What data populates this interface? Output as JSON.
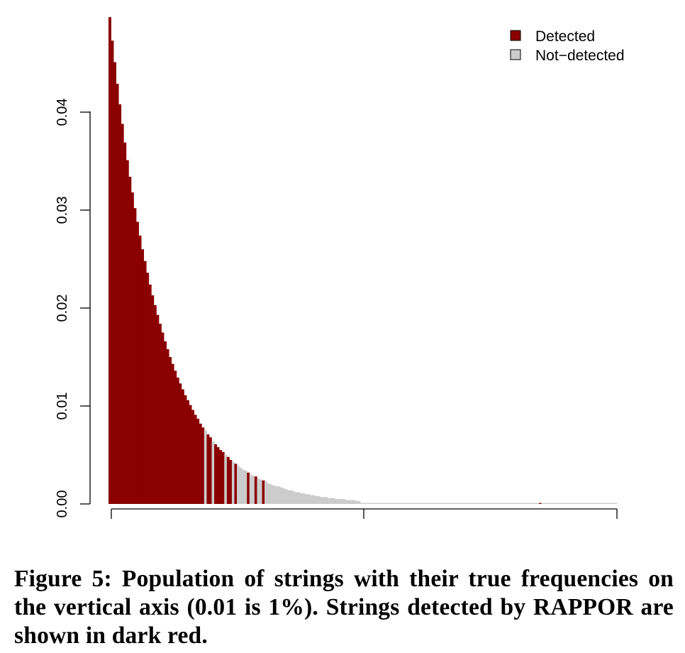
{
  "chart_data": {
    "type": "bar",
    "title": "",
    "xlabel": "",
    "ylabel": "",
    "ylim": [
      0,
      0.05
    ],
    "y_ticks": [
      "0.00",
      "0.01",
      "0.02",
      "0.03",
      "0.04"
    ],
    "grid": false,
    "legend_position": "top-right",
    "n_strings": 200,
    "series": [
      {
        "name": "Detected",
        "color": "#8B0000"
      },
      {
        "name": "Not−detected",
        "color": "#CCCCCC"
      }
    ],
    "values": [
      0.0497,
      0.0473,
      0.0451,
      0.0429,
      0.0408,
      0.0388,
      0.0369,
      0.0351,
      0.0334,
      0.0318,
      0.0302,
      0.0288,
      0.0274,
      0.026,
      0.0248,
      0.0236,
      0.0224,
      0.0213,
      0.0203,
      0.0193,
      0.0184,
      0.0175,
      0.0166,
      0.0158,
      0.015,
      0.0143,
      0.0136,
      0.0129,
      0.0123,
      0.0117,
      0.0111,
      0.0106,
      0.0101,
      0.0096,
      0.0091,
      0.0087,
      0.0082,
      0.0078,
      0.0075,
      0.0071,
      0.0068,
      0.0064,
      0.0061,
      0.0058,
      0.0055,
      0.0053,
      0.005,
      0.0048,
      0.0045,
      0.0043,
      0.0041,
      0.0039,
      0.0037,
      0.0035,
      0.0034,
      0.0032,
      0.003,
      0.0029,
      0.0028,
      0.0026,
      0.0025,
      0.0024,
      0.0023,
      0.0021,
      0.002,
      0.0019,
      0.0018,
      0.0018,
      0.0017,
      0.0016,
      0.0015,
      0.0014,
      0.0014,
      0.0013,
      0.0012,
      0.0012,
      0.0011,
      0.0011,
      0.001,
      0.001,
      0.0009,
      0.0009,
      0.0008,
      0.0008,
      0.0007,
      0.0007,
      0.0007,
      0.0006,
      0.0006,
      0.0006,
      0.0005,
      0.0005,
      0.0005,
      0.0005,
      0.0004,
      0.0004,
      0.0004,
      0.0004,
      0.0003,
      0.0003,
      0.0001,
      0.0001,
      0.0001,
      0.0001,
      0.0001,
      0.0001,
      0.0001,
      0.0001,
      0.0001,
      0.0001,
      0.0001,
      0.0001,
      0.0001,
      0.0001,
      0.0001,
      0.0001,
      0.0001,
      0.0001,
      0.0001,
      0.0001,
      0.0001,
      0.0001,
      0.0001,
      0.0001,
      0.0001,
      0.0001,
      0.0001,
      0.0001,
      0.0001,
      0.0001,
      0.0001,
      0.0001,
      0.0001,
      0.0001,
      0.0001,
      0.0001,
      0.0001,
      0.0001,
      0.0001,
      0.0001,
      0.0001,
      0.0001,
      0.0001,
      0.0001,
      0.0001,
      0.0001,
      0.0001,
      0.0001,
      0.0001,
      0.0001,
      0.0001,
      0.0001,
      0.0001,
      0.0001,
      0.0001,
      0.0001,
      0.0001,
      0.0001,
      0.0001,
      0.0001,
      0.0001,
      0.0001,
      0.0001,
      0.0001,
      0.0001,
      0.0001,
      0.0001,
      0.0001,
      0.0001,
      0.0001,
      0.0001,
      0.0001,
      0.0001,
      0.0001,
      0.0001,
      0.0001,
      0.0001,
      0.0001,
      0.0001,
      0.0001,
      0.0001,
      0.0001,
      0.0001,
      0.0001,
      0.0001,
      0.0001,
      0.0001,
      0.0001,
      0.0001,
      0.0001,
      0.0001,
      0.0001,
      0.0001,
      0.0001,
      0.0001,
      0.0001,
      0.0001,
      0.0001,
      0.0001,
      0.0001,
      0.0001,
      0.0001
    ],
    "detected": [
      true,
      true,
      true,
      true,
      true,
      true,
      true,
      true,
      true,
      true,
      true,
      true,
      true,
      true,
      true,
      true,
      true,
      true,
      true,
      true,
      true,
      true,
      true,
      true,
      true,
      true,
      true,
      true,
      true,
      true,
      true,
      true,
      true,
      true,
      true,
      true,
      true,
      true,
      false,
      true,
      true,
      false,
      true,
      true,
      true,
      true,
      false,
      true,
      true,
      false,
      true,
      false,
      false,
      false,
      false,
      true,
      false,
      false,
      true,
      false,
      false,
      true,
      false,
      false,
      false,
      false,
      false,
      false,
      false,
      false,
      false,
      false,
      false,
      false,
      false,
      false,
      false,
      false,
      false,
      false,
      false,
      false,
      false,
      false,
      false,
      false,
      false,
      false,
      false,
      false,
      false,
      false,
      false,
      false,
      false,
      false,
      false,
      false,
      false,
      false,
      false,
      false,
      false,
      false,
      false,
      false,
      false,
      false,
      false,
      false,
      false,
      false,
      false,
      false,
      false,
      false,
      false,
      false,
      false,
      false,
      false,
      false,
      false,
      false,
      false,
      false,
      false,
      false,
      false,
      false,
      false,
      false,
      false,
      false,
      false,
      false,
      false,
      false,
      false,
      false,
      false,
      false,
      false,
      false,
      false,
      false,
      false,
      false,
      false,
      false,
      false,
      false,
      false,
      false,
      false,
      false,
      false,
      false,
      false,
      false,
      false,
      false,
      false,
      false,
      false,
      false,
      false,
      false,
      false,
      false,
      false,
      true,
      false,
      false,
      false,
      false,
      false,
      false,
      false,
      false,
      false,
      false,
      false,
      false,
      false,
      false,
      false,
      false,
      false,
      false,
      false,
      false,
      false,
      false,
      false,
      false,
      false,
      false,
      false,
      false,
      false,
      false
    ]
  },
  "caption": "Figure 5: Population of strings with their true frequencies on the vertical axis (0.01 is 1%). Strings detected by RAPPOR are shown in dark red."
}
